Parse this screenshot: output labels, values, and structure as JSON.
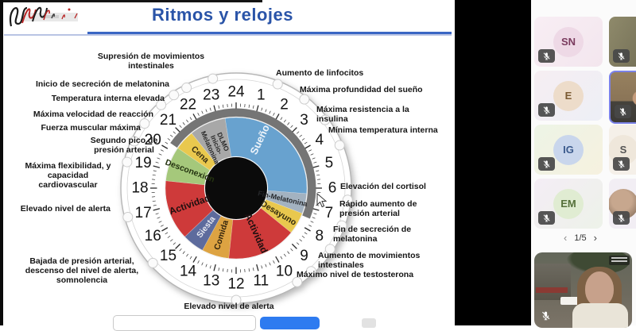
{
  "slide": {
    "title": "Ritmos y relojes"
  },
  "chart_data": {
    "type": "circular_24h_clock",
    "title": "Ritmos y relojes",
    "dial_hours": [
      1,
      2,
      3,
      4,
      5,
      6,
      7,
      8,
      9,
      10,
      11,
      12,
      13,
      14,
      15,
      16,
      17,
      18,
      19,
      20,
      21,
      22,
      23,
      24
    ],
    "night_arc": {
      "start_hour": 20.3,
      "end_hour": 7.5,
      "color": "#6e6e6e"
    },
    "center_color": "#0b0b0b",
    "ring_color": "#ffffff",
    "segments": [
      {
        "label": "Sueño",
        "lines": [
          "Sueño"
        ],
        "start_hour": 23.4,
        "end_hour": 6.3,
        "color": "#68a2cf",
        "text_color": "#eef4fa",
        "label_hour": 1.7,
        "label_radius": 68,
        "font_size": 13
      },
      {
        "label": "Fin-Melatonina",
        "lines": [
          "Fin-Melatonina"
        ],
        "start_hour": 6.3,
        "end_hour": 7.4,
        "color": "#a3b2c0",
        "text_color": "#26282b",
        "label_hour": 6.85,
        "label_radius": 60,
        "font_size": 9
      },
      {
        "label": "Desayuno",
        "lines": [
          "Desayuno"
        ],
        "start_hour": 7.4,
        "end_hour": 8.6,
        "color": "#e9c84e",
        "text_color": "#332c10",
        "label_hour": 8.05,
        "label_radius": 62,
        "font_size": 10.5
      },
      {
        "label": "Actividad",
        "lines": [
          "Actividad"
        ],
        "start_hour": 8.6,
        "end_hour": 12.4,
        "color": "#ce3a3a",
        "text_color": "#201010",
        "label_hour": 10.4,
        "label_radius": 62,
        "font_size": 12
      },
      {
        "label": "Comida",
        "lines": [
          "Comida"
        ],
        "start_hour": 12.4,
        "end_hour": 13.9,
        "color": "#dda342",
        "text_color": "#33250e",
        "label_hour": 13.15,
        "label_radius": 62,
        "font_size": 10.5
      },
      {
        "label": "Siesta",
        "lines": [
          "Siesta"
        ],
        "start_hour": 13.9,
        "end_hour": 15.1,
        "color": "#5d6b9d",
        "text_color": "#e6e8f0",
        "label_hour": 14.5,
        "label_radius": 62,
        "font_size": 10.5
      },
      {
        "label": "Actividad",
        "lines": [
          "Actividad"
        ],
        "start_hour": 15.1,
        "end_hour": 18.4,
        "color": "#ce3a3a",
        "text_color": "#201010",
        "label_hour": 16.7,
        "label_radius": 62,
        "font_size": 12
      },
      {
        "label": "Desconexión",
        "lines": [
          "Desconexión"
        ],
        "start_hour": 18.4,
        "end_hour": 20.3,
        "color": "#a5c87b",
        "text_color": "#243310",
        "label_hour": 19.35,
        "label_radius": 62,
        "font_size": 10.5
      },
      {
        "label": "Cena",
        "lines": [
          "Cena"
        ],
        "start_hour": 20.3,
        "end_hour": 21.4,
        "color": "#e9c84e",
        "text_color": "#332c10",
        "label_hour": 20.85,
        "label_radius": 62,
        "font_size": 10.5
      },
      {
        "label": "DLMO Inicio-Melatonina",
        "lines": [
          "DLMO",
          "Inicio-",
          "Melatonina"
        ],
        "start_hour": 21.4,
        "end_hour": 23.4,
        "color": "#a8a8a8",
        "text_color": "#2b2b2b",
        "label_hour": 22.4,
        "label_radius": 60,
        "font_size": 8.5
      }
    ],
    "events": [
      {
        "label": "Supresión de movimientos intestinales",
        "hour": 23.2
      },
      {
        "label": "Inicio de secreción de melatonina",
        "hour": 22.25
      },
      {
        "label": "Temperatura interna elevada",
        "hour": 21.75
      },
      {
        "label": "Máxima velocidad de reacción",
        "hour": 21.2
      },
      {
        "label": "Fuerza muscular máxima",
        "hour": 20.35
      },
      {
        "label": "Segundo pico de presión arterial",
        "hour": 19.65
      },
      {
        "label": "Máxima flexibilidad, y capacidad cardiovascular",
        "hour": 18.9
      },
      {
        "label": "Elevado nivel de alerta",
        "hour": 17
      },
      {
        "label": "Bajada de presión arterial, descenso del nivel de alerta, somnolencia",
        "hour": 15.2
      },
      {
        "label": "Elevado nivel de alerta",
        "hour": 12
      },
      {
        "label": "Aumento de linfocitos",
        "hour": 1.45
      },
      {
        "label": "Máxima profundidad del sueño",
        "hour": 2.5
      },
      {
        "label": "Máxima resistencia a la insulina",
        "hour": 3.5
      },
      {
        "label": "Mínima temperatura interna",
        "hour": 4.5
      },
      {
        "label": "Elevación del cortisol",
        "hour": 6.4
      },
      {
        "label": "Rápido aumento de presión arterial",
        "hour": 7.3
      },
      {
        "label": "Fin de secreción de melatonina",
        "hour": 8.2
      },
      {
        "label": "Aumento de movimientos intestinales",
        "hour": 9.2
      },
      {
        "label": "Máximo nivel de testosterona",
        "hour": 9.8
      }
    ]
  },
  "meeting": {
    "participants": [
      {
        "initials": "SN",
        "muted": true
      },
      {
        "initials": "E",
        "muted": true
      },
      {
        "initials": "IG",
        "muted": true
      },
      {
        "initials": "EM",
        "muted": true
      },
      {
        "initials": "S",
        "muted": true
      }
    ],
    "pagination": {
      "prev": "‹",
      "page_indicator": "1/5",
      "next": "›"
    }
  }
}
